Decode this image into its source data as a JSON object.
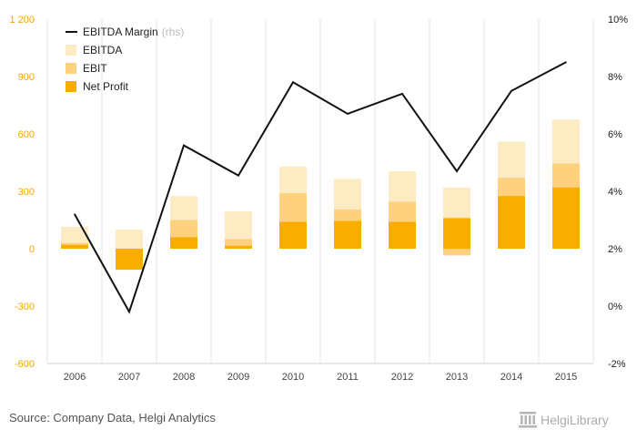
{
  "chart_data": {
    "type": "bar",
    "categories": [
      "2006",
      "2007",
      "2008",
      "2009",
      "2010",
      "2011",
      "2012",
      "2013",
      "2014",
      "2015"
    ],
    "series": [
      {
        "name": "EBITDA",
        "kind": "bar",
        "axis": "left",
        "color": "#fdebc3",
        "values": [
          115,
          100,
          275,
          195,
          430,
          365,
          405,
          320,
          560,
          675
        ]
      },
      {
        "name": "EBIT",
        "kind": "bar",
        "axis": "left",
        "color": "#fdd17e",
        "values": [
          30,
          -30,
          150,
          50,
          290,
          205,
          245,
          -35,
          370,
          445
        ]
      },
      {
        "name": "Net Profit",
        "kind": "bar",
        "axis": "left",
        "color": "#f8ad00",
        "values": [
          20,
          -110,
          60,
          15,
          140,
          145,
          140,
          160,
          275,
          320
        ]
      },
      {
        "name": "EBITDA Margin",
        "note": "(rhs)",
        "kind": "line",
        "axis": "right",
        "color": "#111111",
        "values": [
          3.2,
          -0.2,
          5.6,
          4.55,
          7.8,
          6.7,
          7.4,
          4.7,
          7.5,
          8.5
        ]
      }
    ],
    "y_left": {
      "min": -600,
      "max": 1200,
      "ticks": [
        "-600",
        "-300",
        "0",
        "300",
        "600",
        "900",
        "1 200"
      ],
      "tick_values": [
        -600,
        -300,
        0,
        300,
        600,
        900,
        1200
      ]
    },
    "y_right": {
      "min": -2,
      "max": 10,
      "ticks": [
        "-2%",
        "0%",
        "2%",
        "4%",
        "6%",
        "8%",
        "10%"
      ],
      "tick_values": [
        -2,
        0,
        2,
        4,
        6,
        8,
        10
      ]
    },
    "legend_order": [
      "EBITDA Margin",
      "EBITDA",
      "EBIT",
      "Net Profit"
    ],
    "legend_position": "top-left",
    "grid": "vertical"
  },
  "footer": {
    "source": "Source: Company Data, Helgi Analytics",
    "brand": "HelgiLibrary"
  },
  "colors": {
    "left_axis": "#f0a800",
    "grid": "#e6e6e6"
  }
}
